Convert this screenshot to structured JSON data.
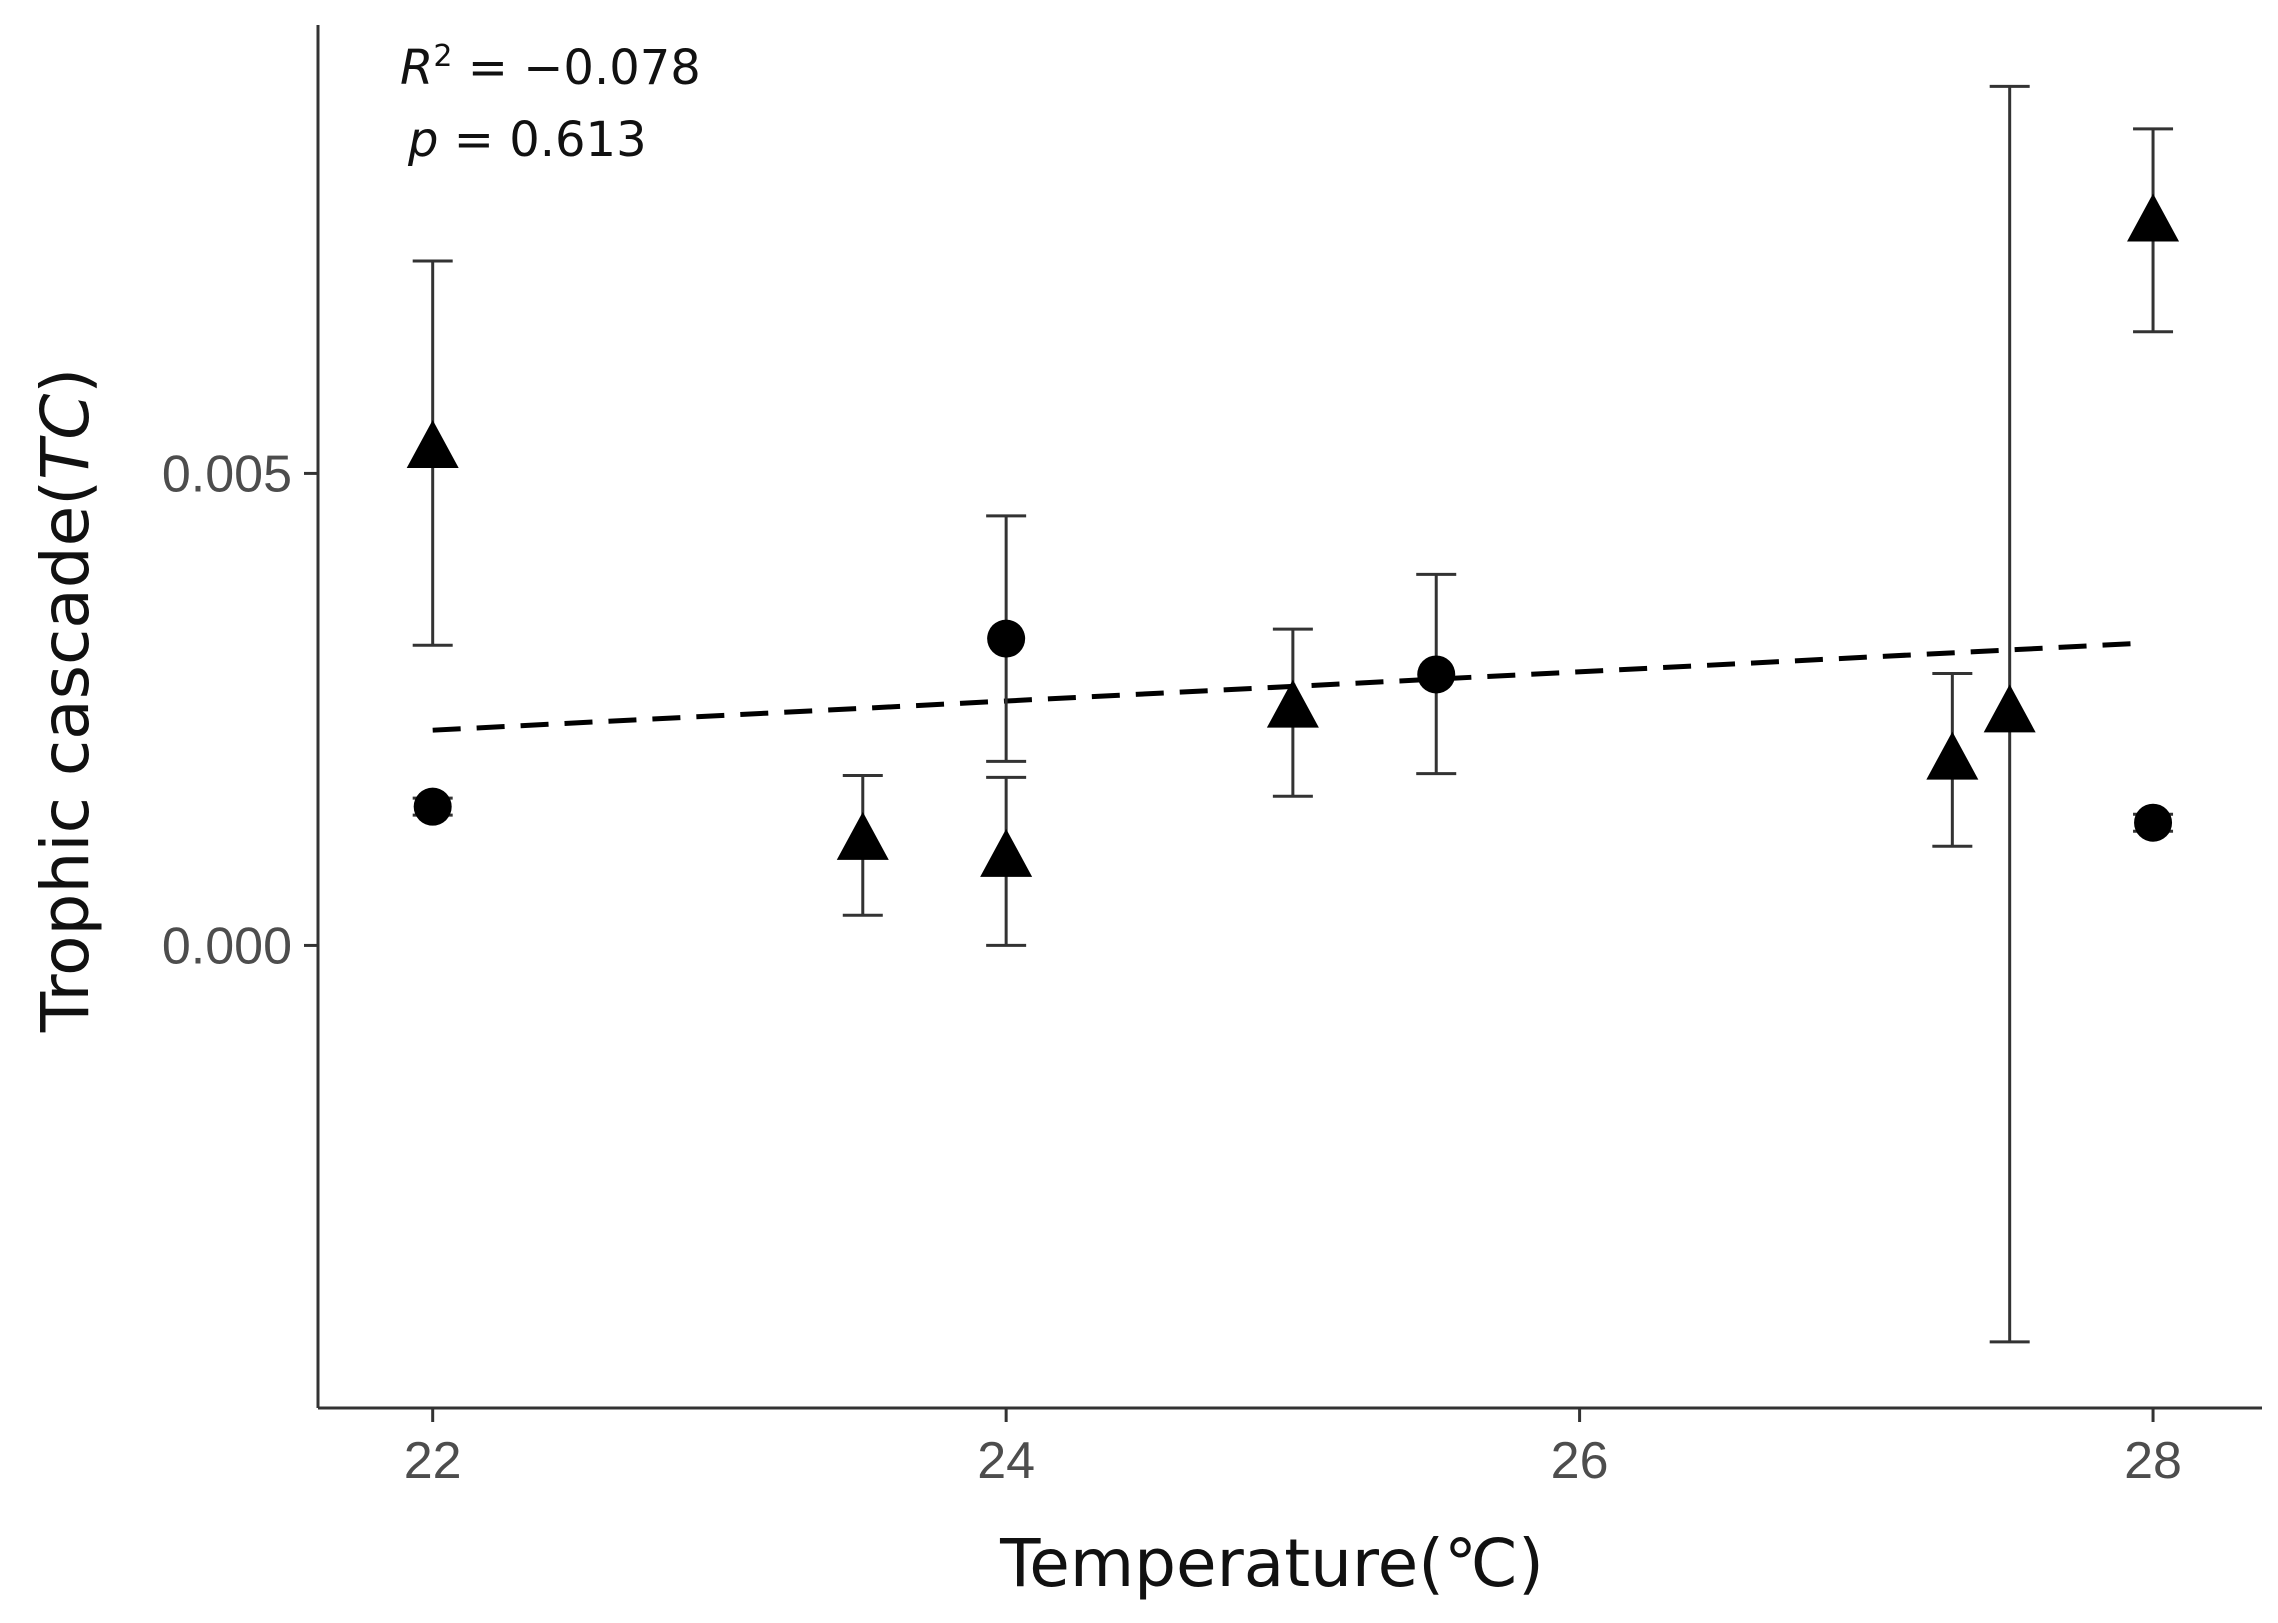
{
  "chart_data": {
    "type": "scatter",
    "title": "",
    "xlabel": "Temperature(℃)",
    "ylabel_main": "Trophic cascade(",
    "ylabel_symbol": "TC",
    "ylabel_close": ")",
    "xlim": [
      21.6,
      28.38
    ],
    "ylim": [
      -0.0049,
      0.00975
    ],
    "xticks": [
      22,
      24,
      26,
      28
    ],
    "xtick_labels": [
      "22",
      "24",
      "26",
      "28"
    ],
    "yticks": [
      0.0,
      0.005
    ],
    "ytick_labels": [
      "0.000",
      "0.005"
    ],
    "grid": false,
    "annotations": {
      "r2_symbol": "R",
      "r2_sup": "2",
      "r2_value": " = −0.078",
      "p_symbol": "p",
      "p_value": " = 0.613"
    },
    "series": [
      {
        "name": "circle",
        "marker": "circle",
        "points": [
          {
            "x": 22.0,
            "y": 0.00147,
            "lower": 0.00138,
            "upper": 0.00156
          },
          {
            "x": 24.0,
            "y": 0.00325,
            "lower": 0.00195,
            "upper": 0.00455
          },
          {
            "x": 25.5,
            "y": 0.00287,
            "lower": 0.00182,
            "upper": 0.00393
          },
          {
            "x": 28.0,
            "y": 0.0013,
            "lower": 0.00121,
            "upper": 0.00139
          }
        ]
      },
      {
        "name": "triangle",
        "marker": "triangle",
        "points": [
          {
            "x": 22.0,
            "y": 0.00525,
            "lower": 0.00318,
            "upper": 0.00725
          },
          {
            "x": 23.5,
            "y": 0.0011,
            "lower": 0.00032,
            "upper": 0.0018
          },
          {
            "x": 24.0,
            "y": 0.00092,
            "lower": 0.0,
            "upper": 0.00178
          },
          {
            "x": 25.0,
            "y": 0.0025,
            "lower": 0.00158,
            "upper": 0.00335
          },
          {
            "x": 27.3,
            "y": 0.00195,
            "lower": 0.00105,
            "upper": 0.00288
          },
          {
            "x": 27.5,
            "y": 0.00245,
            "lower": -0.0042,
            "upper": 0.0091
          },
          {
            "x": 28.0,
            "y": 0.00765,
            "lower": 0.0065,
            "upper": 0.00865
          }
        ]
      }
    ],
    "fit_line": {
      "style": "dashed",
      "x": [
        22.0,
        27.95
      ],
      "y": [
        0.00228,
        0.0032
      ]
    }
  }
}
